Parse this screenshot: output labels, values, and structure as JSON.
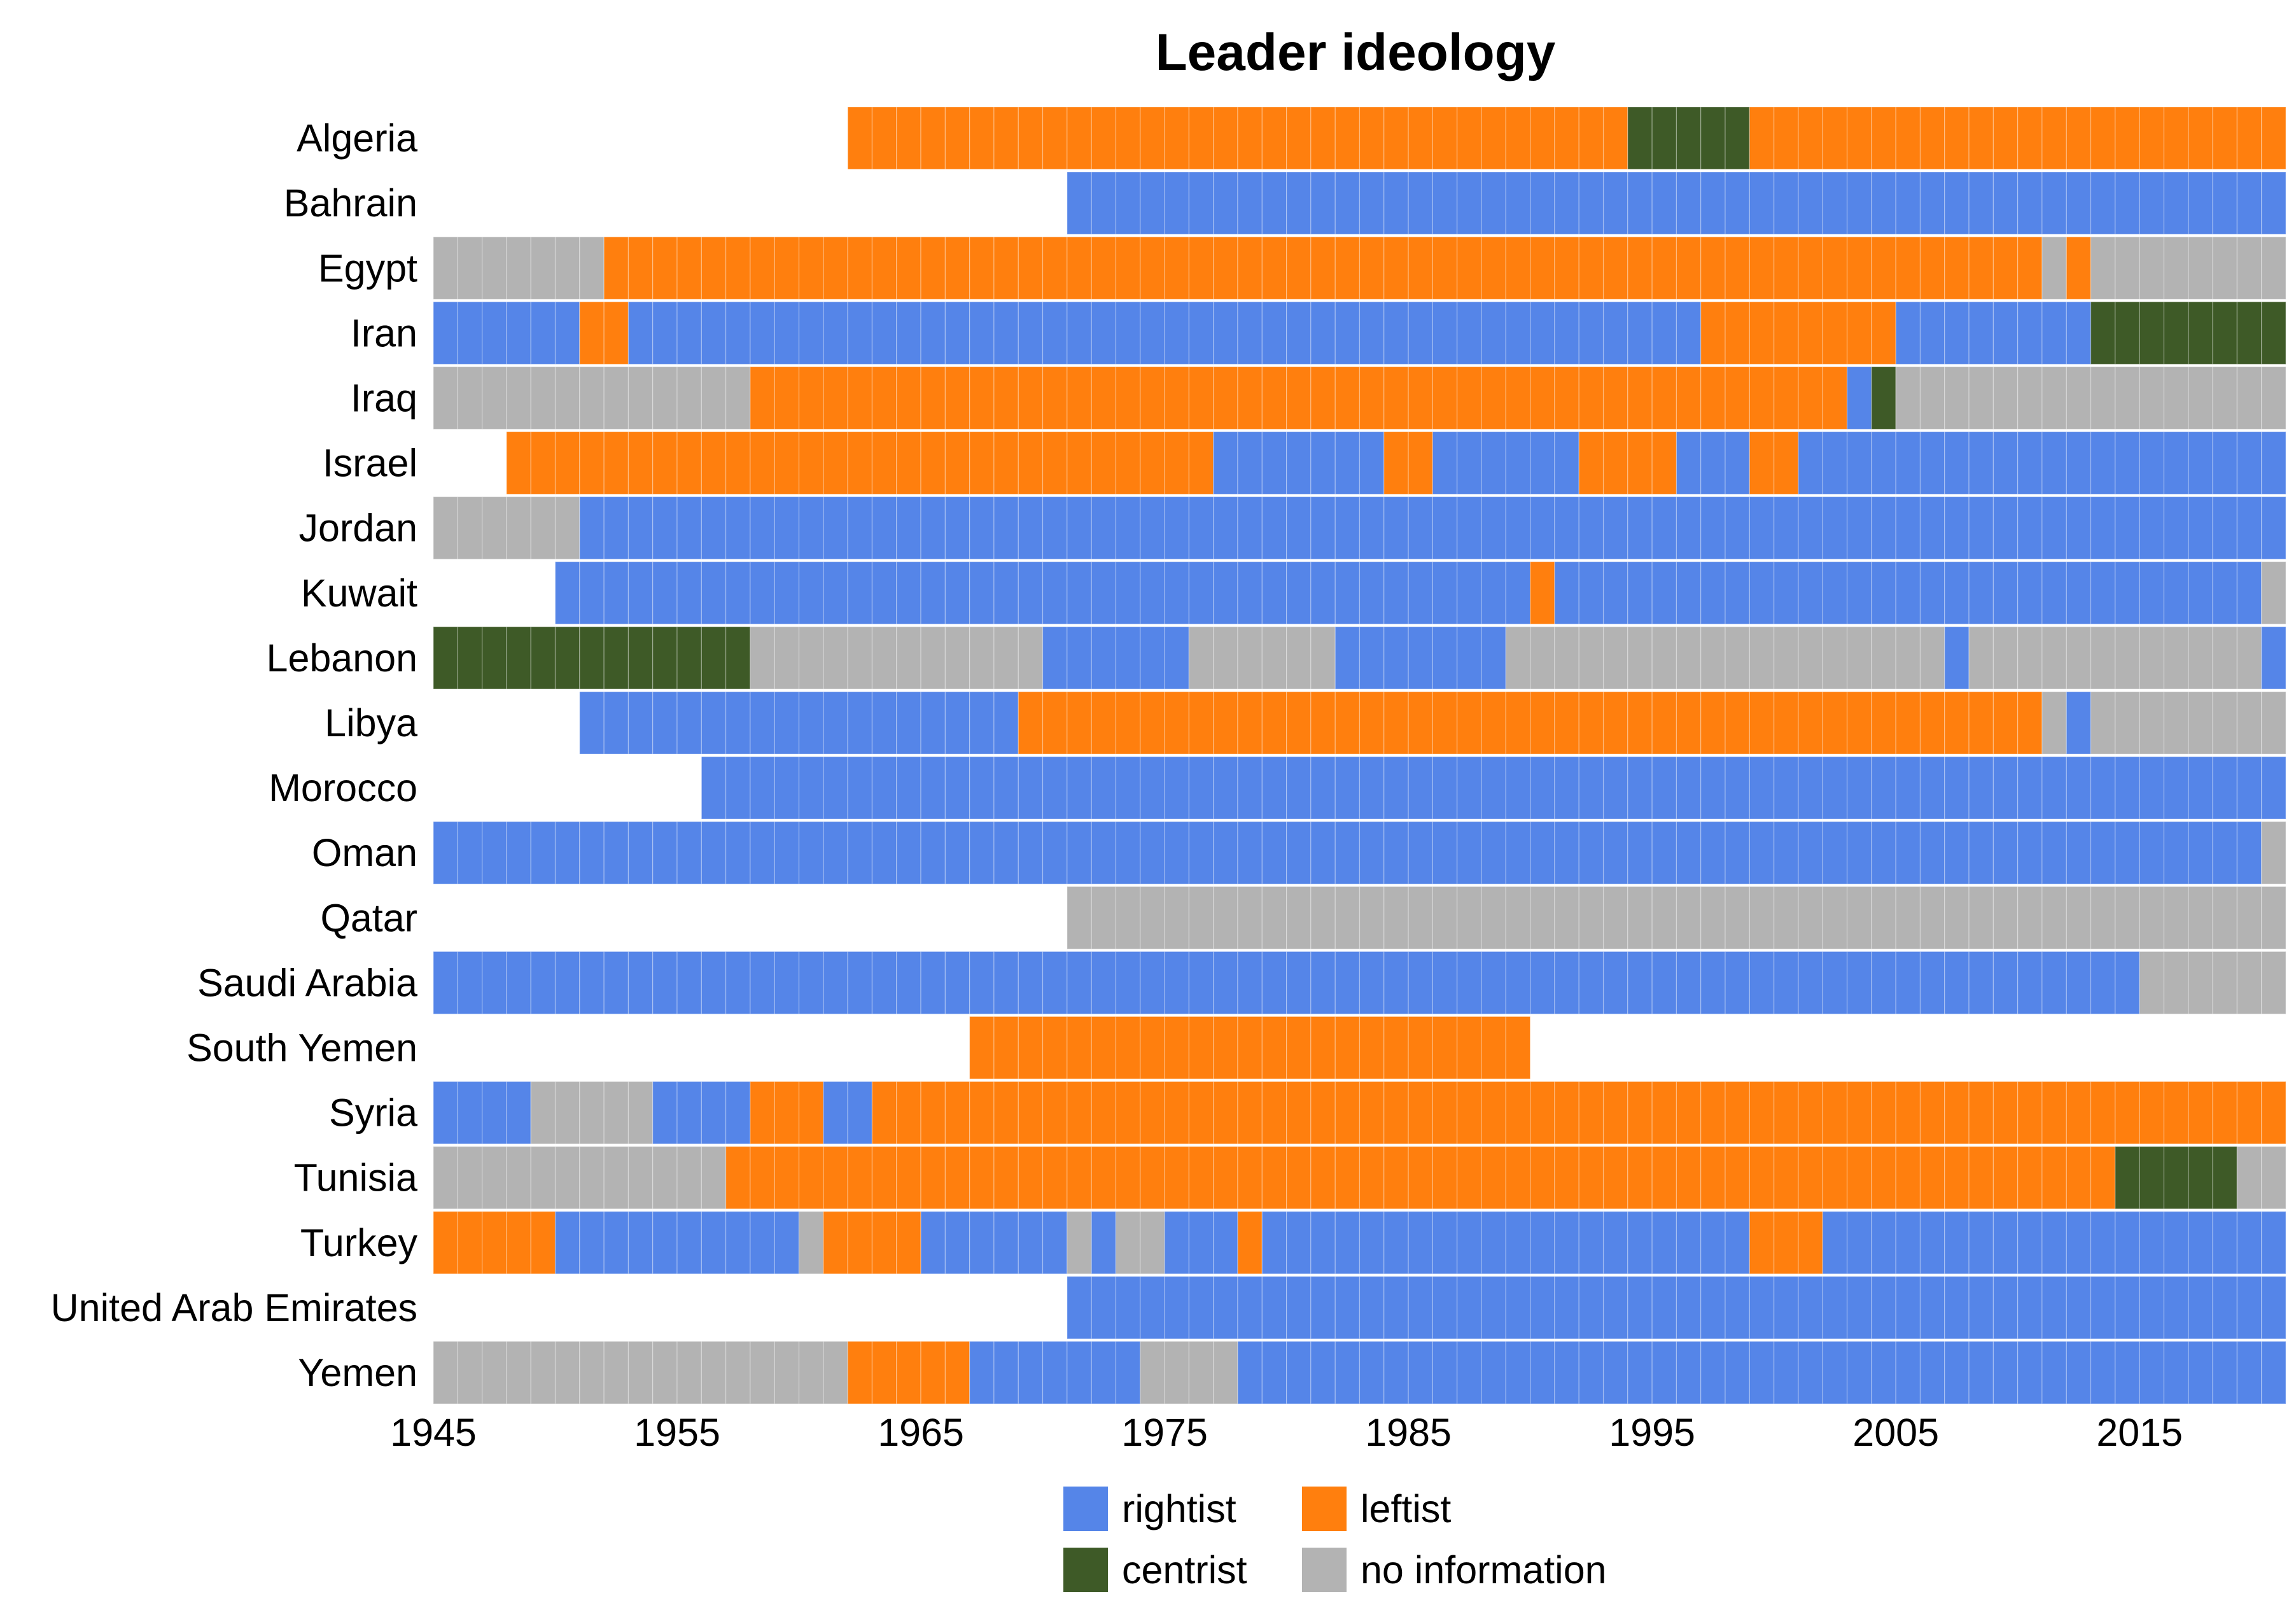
{
  "chart_data": {
    "type": "heatmap",
    "title": "Leader ideology",
    "xlabel": "",
    "ylabel": "",
    "x_range": [
      1945,
      2020
    ],
    "x_ticks": [
      "1945",
      "1955",
      "1965",
      "1975",
      "1985",
      "1995",
      "2005",
      "2015"
    ],
    "grid": false,
    "legend_position": "bottom",
    "categories": [
      {
        "key": "R",
        "label": "rightist",
        "color": "#5585E8"
      },
      {
        "key": "L",
        "label": "leftist",
        "color": "#FF7F0E"
      },
      {
        "key": "C",
        "label": "centrist",
        "color": "#3E5A27"
      },
      {
        "key": "N",
        "label": "no information",
        "color": "#B3B3B3"
      }
    ],
    "rows": [
      {
        "country": "Algeria",
        "segments": [
          [
            1962,
            1994,
            "L"
          ],
          [
            1994,
            1999,
            "C"
          ],
          [
            1999,
            2021,
            "L"
          ]
        ]
      },
      {
        "country": "Bahrain",
        "segments": [
          [
            1971,
            2021,
            "R"
          ]
        ]
      },
      {
        "country": "Egypt",
        "segments": [
          [
            1945,
            1952,
            "N"
          ],
          [
            1952,
            2011,
            "L"
          ],
          [
            2011,
            2012,
            "N"
          ],
          [
            2012,
            2013,
            "L"
          ],
          [
            2013,
            2021,
            "N"
          ]
        ]
      },
      {
        "country": "Iran",
        "segments": [
          [
            1945,
            1951,
            "R"
          ],
          [
            1951,
            1953,
            "L"
          ],
          [
            1953,
            1997,
            "R"
          ],
          [
            1997,
            2005,
            "L"
          ],
          [
            2005,
            2013,
            "R"
          ],
          [
            2013,
            2021,
            "C"
          ]
        ]
      },
      {
        "country": "Iraq",
        "segments": [
          [
            1945,
            1958,
            "N"
          ],
          [
            1958,
            2003,
            "L"
          ],
          [
            2003,
            2004,
            "R"
          ],
          [
            2004,
            2005,
            "C"
          ],
          [
            2005,
            2021,
            "N"
          ]
        ]
      },
      {
        "country": "Israel",
        "segments": [
          [
            1948,
            1977,
            "L"
          ],
          [
            1977,
            1984,
            "R"
          ],
          [
            1984,
            1986,
            "L"
          ],
          [
            1986,
            1992,
            "R"
          ],
          [
            1992,
            1996,
            "L"
          ],
          [
            1996,
            1999,
            "R"
          ],
          [
            1999,
            2001,
            "L"
          ],
          [
            2001,
            2021,
            "R"
          ]
        ]
      },
      {
        "country": "Jordan",
        "segments": [
          [
            1945,
            1951,
            "N"
          ],
          [
            1951,
            2021,
            "R"
          ]
        ]
      },
      {
        "country": "Kuwait",
        "segments": [
          [
            1950,
            1990,
            "R"
          ],
          [
            1990,
            1991,
            "L"
          ],
          [
            1991,
            2020,
            "R"
          ],
          [
            2020,
            2021,
            "N"
          ]
        ]
      },
      {
        "country": "Lebanon",
        "segments": [
          [
            1945,
            1958,
            "C"
          ],
          [
            1958,
            1970,
            "N"
          ],
          [
            1970,
            1976,
            "R"
          ],
          [
            1976,
            1982,
            "N"
          ],
          [
            1982,
            1989,
            "R"
          ],
          [
            1989,
            2007,
            "N"
          ],
          [
            2007,
            2008,
            "R"
          ],
          [
            2008,
            2020,
            "N"
          ],
          [
            2020,
            2021,
            "R"
          ]
        ]
      },
      {
        "country": "Libya",
        "segments": [
          [
            1951,
            1969,
            "R"
          ],
          [
            1969,
            2011,
            "L"
          ],
          [
            2011,
            2012,
            "N"
          ],
          [
            2012,
            2013,
            "R"
          ],
          [
            2013,
            2021,
            "N"
          ]
        ]
      },
      {
        "country": "Morocco",
        "segments": [
          [
            1956,
            2021,
            "R"
          ]
        ]
      },
      {
        "country": "Oman",
        "segments": [
          [
            1945,
            2020,
            "R"
          ],
          [
            2020,
            2021,
            "N"
          ]
        ]
      },
      {
        "country": "Qatar",
        "segments": [
          [
            1971,
            2021,
            "N"
          ]
        ]
      },
      {
        "country": "Saudi Arabia",
        "segments": [
          [
            1945,
            2015,
            "R"
          ],
          [
            2015,
            2021,
            "N"
          ]
        ]
      },
      {
        "country": "South Yemen",
        "segments": [
          [
            1967,
            1990,
            "L"
          ]
        ]
      },
      {
        "country": "Syria",
        "segments": [
          [
            1945,
            1949,
            "R"
          ],
          [
            1949,
            1954,
            "N"
          ],
          [
            1954,
            1958,
            "R"
          ],
          [
            1958,
            1961,
            "L"
          ],
          [
            1961,
            1963,
            "R"
          ],
          [
            1963,
            2021,
            "L"
          ]
        ]
      },
      {
        "country": "Tunisia",
        "segments": [
          [
            1945,
            1957,
            "N"
          ],
          [
            1957,
            2014,
            "L"
          ],
          [
            2014,
            2019,
            "C"
          ],
          [
            2019,
            2021,
            "N"
          ]
        ]
      },
      {
        "country": "Turkey",
        "segments": [
          [
            1945,
            1950,
            "L"
          ],
          [
            1950,
            1960,
            "R"
          ],
          [
            1960,
            1961,
            "N"
          ],
          [
            1961,
            1965,
            "L"
          ],
          [
            1965,
            1971,
            "R"
          ],
          [
            1971,
            1972,
            "N"
          ],
          [
            1972,
            1973,
            "R"
          ],
          [
            1973,
            1975,
            "N"
          ],
          [
            1975,
            1978,
            "R"
          ],
          [
            1978,
            1979,
            "L"
          ],
          [
            1979,
            1999,
            "R"
          ],
          [
            1999,
            2002,
            "L"
          ],
          [
            2002,
            2021,
            "R"
          ]
        ]
      },
      {
        "country": "United Arab Emirates",
        "segments": [
          [
            1971,
            2021,
            "R"
          ]
        ]
      },
      {
        "country": "Yemen",
        "segments": [
          [
            1945,
            1962,
            "N"
          ],
          [
            1962,
            1967,
            "L"
          ],
          [
            1967,
            1974,
            "R"
          ],
          [
            1974,
            1978,
            "N"
          ],
          [
            1978,
            2021,
            "R"
          ]
        ]
      }
    ]
  }
}
